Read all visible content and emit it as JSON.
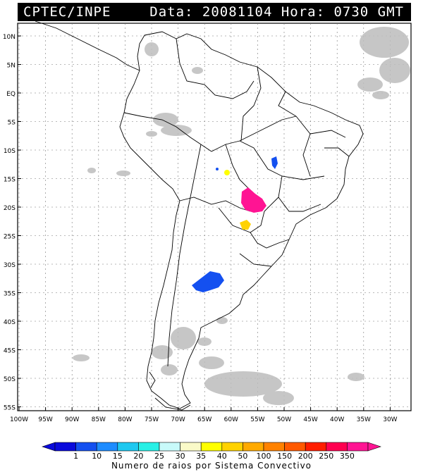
{
  "header": {
    "source": "CPTEC/INPE",
    "datetime": "Data: 20081104 Hora: 0730 GMT"
  },
  "map": {
    "lat_labels": [
      "10N",
      "5N",
      "EQ",
      "5S",
      "10S",
      "15S",
      "20S",
      "25S",
      "30S",
      "35S",
      "40S",
      "45S",
      "50S",
      "55S"
    ],
    "lon_labels": [
      "100W",
      "95W",
      "90W",
      "85W",
      "80W",
      "75W",
      "70W",
      "65W",
      "60W",
      "55W",
      "50W",
      "45W",
      "40W",
      "35W",
      "30W"
    ],
    "land_color": "#ffffff",
    "cloud_color": "#bdbdbd",
    "border_color": "#000000"
  },
  "legend": {
    "title": "Numero de raios por Sistema Convectivo",
    "ticks": [
      "1",
      "10",
      "15",
      "20",
      "25",
      "30",
      "35",
      "40",
      "50",
      "100",
      "150",
      "200",
      "250",
      "350"
    ],
    "colors": [
      "#0a0adc",
      "#1450f0",
      "#1e8cff",
      "#1ec8f0",
      "#28f0e6",
      "#c8fafa",
      "#fafac8",
      "#ffff00",
      "#ffd200",
      "#ffaa00",
      "#ff8200",
      "#ff5a00",
      "#ff1e00",
      "#ff0050",
      "#ff1493"
    ]
  },
  "systems": [
    {
      "name": "argentina-cluster",
      "color": "#1450f0"
    },
    {
      "name": "mato-grosso-cluster",
      "color": "#ff1493"
    },
    {
      "name": "paraguay-cluster",
      "color": "#ffd200"
    },
    {
      "name": "bolivia-cluster",
      "color": "#ffff00"
    },
    {
      "name": "bahia-cluster",
      "color": "#1450f0"
    }
  ]
}
